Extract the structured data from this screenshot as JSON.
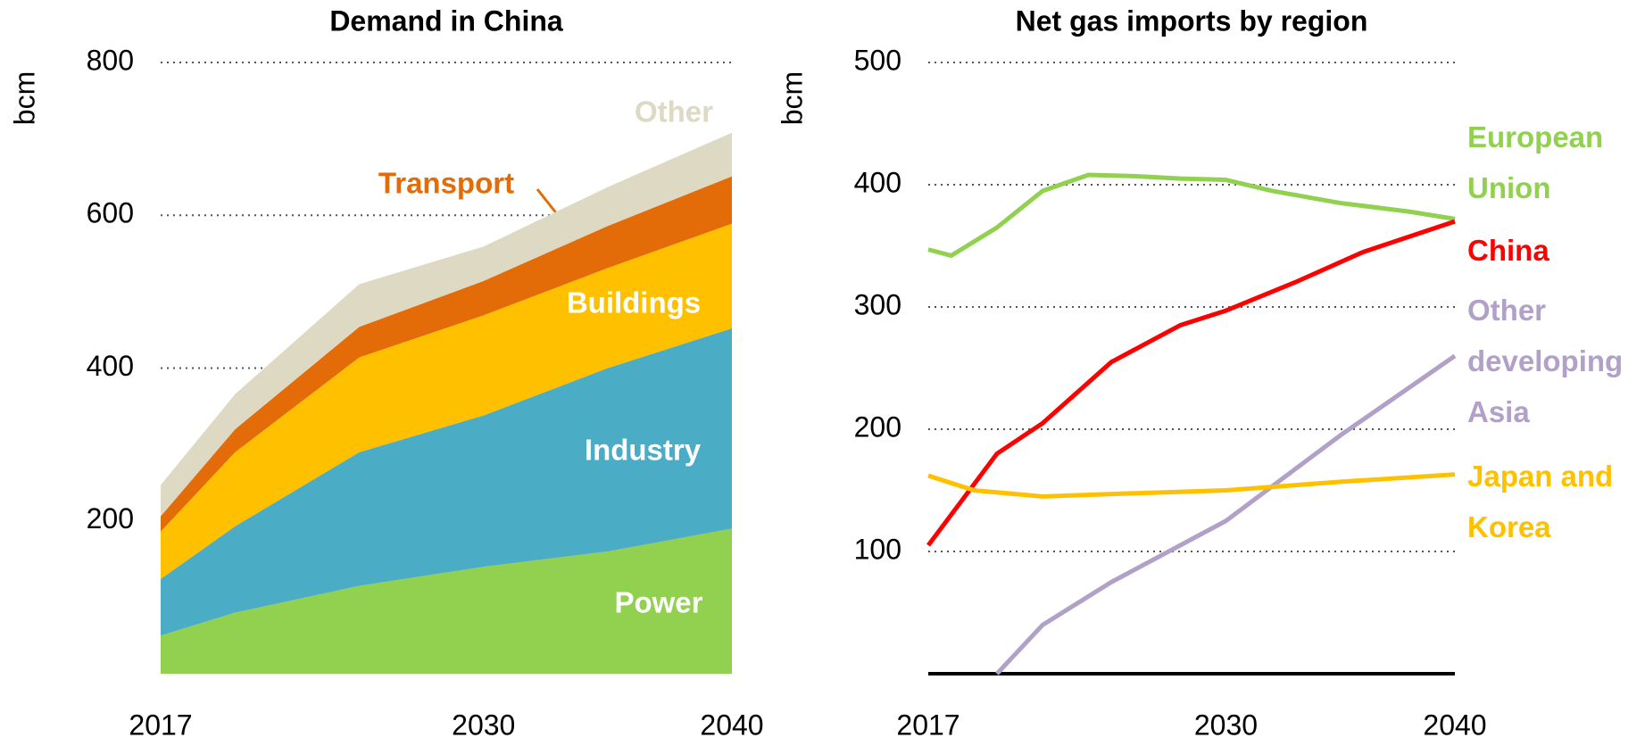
{
  "chart_data": [
    {
      "type": "area",
      "title": "Demand in China",
      "ylabel": "bcm",
      "x": [
        2017,
        2020,
        2025,
        2030,
        2035,
        2040
      ],
      "xlim": [
        2017,
        2040
      ],
      "xticks": [
        2017,
        2030,
        2040
      ],
      "ylim": [
        0,
        800
      ],
      "yticks": [
        200,
        400,
        600,
        800
      ],
      "grid": true,
      "series": [
        {
          "name": "Power",
          "color": "#92d050",
          "values": [
            50,
            80,
            115,
            140,
            160,
            190
          ]
        },
        {
          "name": "Industry",
          "color": "#4bacc6",
          "values": [
            74,
            113,
            175,
            198,
            240,
            262
          ]
        },
        {
          "name": "Buildings",
          "color": "#ffc000",
          "values": [
            62,
            97,
            124,
            131,
            131,
            137
          ]
        },
        {
          "name": "Transport",
          "color": "#e36c09",
          "values": [
            20,
            30,
            40,
            45,
            55,
            62
          ]
        },
        {
          "name": "Other",
          "color": "#ddd9c3",
          "values": [
            41,
            46,
            56,
            45,
            51,
            57
          ]
        }
      ]
    },
    {
      "type": "line",
      "title": "Net gas imports by region",
      "ylabel": "bcm",
      "xlim": [
        2017,
        2040
      ],
      "xticks": [
        2017,
        2030,
        2040
      ],
      "ylim": [
        0,
        500
      ],
      "yticks": [
        100,
        200,
        300,
        400,
        500
      ],
      "grid": true,
      "series": [
        {
          "name": "European Union",
          "color": "#92d050",
          "x": [
            2017,
            2018,
            2020,
            2022,
            2024,
            2026,
            2028,
            2030,
            2032,
            2035,
            2038,
            2040
          ],
          "values": [
            347,
            342,
            365,
            395,
            408,
            407,
            405,
            404,
            395,
            385,
            378,
            372
          ]
        },
        {
          "name": "China",
          "color": "#ff0000",
          "x": [
            2017,
            2020,
            2022,
            2025,
            2028,
            2030,
            2033,
            2036,
            2040
          ],
          "values": [
            105,
            180,
            205,
            255,
            285,
            297,
            320,
            345,
            370
          ]
        },
        {
          "name": "Other developing Asia",
          "color": "#b1a0c7",
          "x": [
            2020,
            2022,
            2025,
            2030,
            2035,
            2040
          ],
          "values": [
            0,
            40,
            75,
            125,
            195,
            260
          ]
        },
        {
          "name": "Japan and Korea",
          "color": "#ffc000",
          "x": [
            2017,
            2019,
            2022,
            2025,
            2030,
            2035,
            2040
          ],
          "values": [
            162,
            150,
            145,
            147,
            150,
            157,
            163
          ]
        }
      ]
    }
  ]
}
